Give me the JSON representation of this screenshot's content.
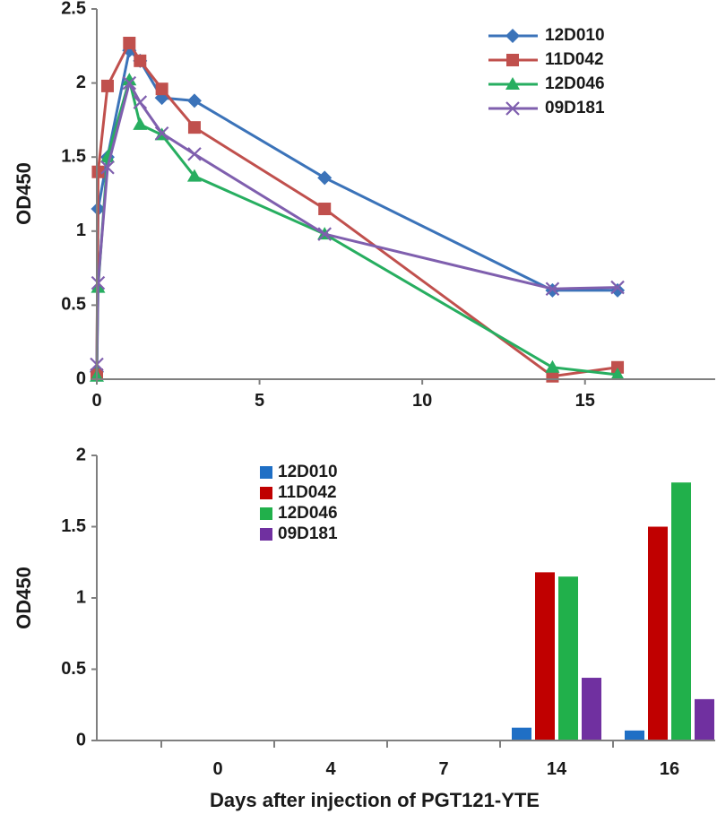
{
  "chart_data": [
    {
      "type": "line",
      "ylabel": "OD450",
      "xlim": [
        0,
        19
      ],
      "ylim": [
        0,
        2.5
      ],
      "x_ticks": [
        0,
        5,
        10,
        15
      ],
      "y_ticks": [
        "0",
        "0.5",
        "1",
        "1.5",
        "2",
        "2.5"
      ],
      "grid": false,
      "legend_position": "top-right",
      "series": [
        {
          "name": "12D010",
          "color": "#3b73b9",
          "marker": "diamond",
          "points": [
            [
              0,
              0.05
            ],
            [
              0.04,
              1.15
            ],
            [
              0.33,
              1.5
            ],
            [
              1,
              2.22
            ],
            [
              1.33,
              2.15
            ],
            [
              2,
              1.9
            ],
            [
              3,
              1.88
            ],
            [
              7,
              1.36
            ],
            [
              14,
              0.6
            ],
            [
              16,
              0.6
            ]
          ]
        },
        {
          "name": "11D042",
          "color": "#c0504d",
          "marker": "square",
          "points": [
            [
              0,
              0.03
            ],
            [
              0.04,
              1.4
            ],
            [
              0.33,
              1.98
            ],
            [
              1,
              2.27
            ],
            [
              1.33,
              2.15
            ],
            [
              2,
              1.96
            ],
            [
              3,
              1.7
            ],
            [
              7,
              1.15
            ],
            [
              14,
              0.02
            ],
            [
              16,
              0.08
            ]
          ]
        },
        {
          "name": "12D046",
          "color": "#27ae60",
          "marker": "triangle",
          "points": [
            [
              0,
              0.02
            ],
            [
              0.04,
              0.62
            ],
            [
              0.33,
              1.5
            ],
            [
              1,
              2.02
            ],
            [
              1.33,
              1.72
            ],
            [
              2,
              1.65
            ],
            [
              3,
              1.37
            ],
            [
              7,
              0.98
            ],
            [
              14,
              0.08
            ],
            [
              16,
              0.03
            ]
          ]
        },
        {
          "name": "09D181",
          "color": "#7f5fae",
          "marker": "x",
          "points": [
            [
              0,
              0.1
            ],
            [
              0.04,
              0.65
            ],
            [
              0.33,
              1.43
            ],
            [
              1,
              2.0
            ],
            [
              1.33,
              1.87
            ],
            [
              2,
              1.66
            ],
            [
              3,
              1.52
            ],
            [
              7,
              0.98
            ],
            [
              14,
              0.61
            ],
            [
              16,
              0.62
            ]
          ]
        }
      ]
    },
    {
      "type": "bar",
      "ylabel": "OD450",
      "xlabel": "Days after injection of PGT121-YTE",
      "categories": [
        "0",
        "4",
        "7",
        "14",
        "16"
      ],
      "ylim": [
        0,
        2
      ],
      "y_ticks": [
        "0",
        "0.5",
        "1",
        "1.5",
        "2"
      ],
      "grid": false,
      "legend_position": "top-center",
      "series": [
        {
          "name": "12D010",
          "color": "#1f6fc5",
          "values": [
            0,
            0,
            0,
            0.09,
            0.07
          ]
        },
        {
          "name": "11D042",
          "color": "#c00000",
          "values": [
            0,
            0,
            0,
            1.18,
            1.5
          ]
        },
        {
          "name": "12D046",
          "color": "#21b04b",
          "values": [
            0,
            0,
            0,
            1.15,
            1.81
          ]
        },
        {
          "name": "09D181",
          "color": "#7030a0",
          "values": [
            0,
            0,
            0,
            0.44,
            0.29
          ]
        }
      ]
    }
  ]
}
